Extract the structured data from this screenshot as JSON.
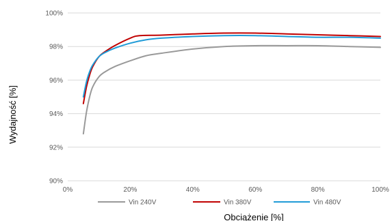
{
  "chart_data": {
    "type": "line",
    "xlabel": "Obciążenie [%]",
    "ylabel": "Wydajność [%]",
    "xlim": [
      0,
      100
    ],
    "ylim": [
      90,
      100
    ],
    "x_ticks": [
      0,
      20,
      40,
      60,
      80,
      100
    ],
    "x_tick_labels": [
      "0%",
      "20%",
      "40%",
      "60%",
      "80%",
      "100%"
    ],
    "y_ticks": [
      90,
      92,
      94,
      96,
      98,
      100
    ],
    "y_tick_labels": [
      "90%",
      "92%",
      "94%",
      "96%",
      "98%",
      "100%"
    ],
    "grid": "horizontal",
    "legend_position": "bottom",
    "series": [
      {
        "name": "Vin 240V",
        "color": "#999999",
        "x": [
          5,
          6,
          7,
          8,
          10,
          12,
          15,
          20,
          25,
          30,
          40,
          50,
          60,
          70,
          80,
          90,
          100
        ],
        "y": [
          92.8,
          94.1,
          95.0,
          95.6,
          96.2,
          96.5,
          96.8,
          97.15,
          97.45,
          97.6,
          97.85,
          98.0,
          98.05,
          98.05,
          98.05,
          98.0,
          97.95
        ]
      },
      {
        "name": "Vin 380V",
        "color": "#c00000",
        "x": [
          5,
          6,
          7,
          8,
          10,
          12,
          15,
          20,
          23,
          30,
          40,
          50,
          60,
          70,
          80,
          90,
          100
        ],
        "y": [
          94.6,
          95.6,
          96.3,
          96.8,
          97.4,
          97.7,
          98.05,
          98.5,
          98.65,
          98.68,
          98.75,
          98.8,
          98.8,
          98.75,
          98.7,
          98.65,
          98.6
        ]
      },
      {
        "name": "Vin 480V",
        "color": "#1f9bd7",
        "x": [
          5,
          6,
          7,
          8,
          10,
          12,
          15,
          20,
          25,
          30,
          40,
          50,
          60,
          70,
          80,
          90,
          100
        ],
        "y": [
          95.0,
          95.9,
          96.5,
          96.9,
          97.4,
          97.65,
          97.9,
          98.2,
          98.4,
          98.5,
          98.6,
          98.65,
          98.65,
          98.6,
          98.55,
          98.55,
          98.5
        ]
      }
    ]
  }
}
